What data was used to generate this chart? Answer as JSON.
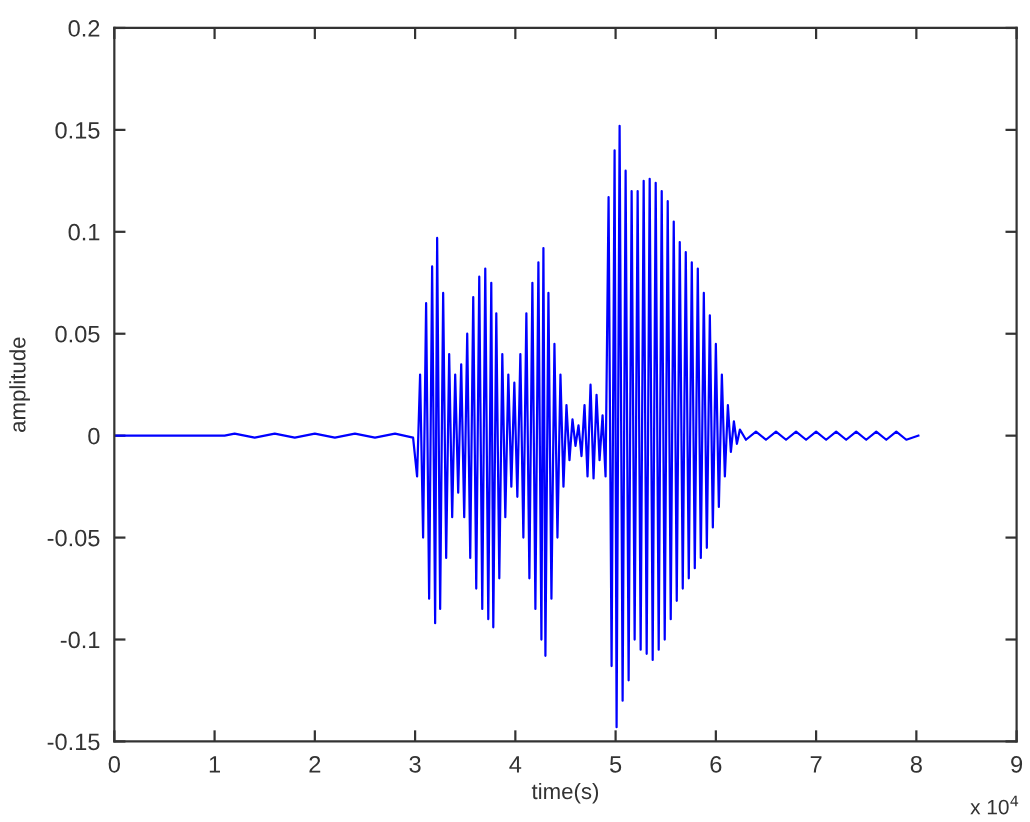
{
  "chart_data": {
    "type": "line",
    "xlabel": "time(s)",
    "ylabel": "amplitude",
    "color": "#0000ff",
    "marker": "none",
    "line_style": "solid",
    "grid": false,
    "annotations": [
      "x 10$^{4}$"
    ],
    "xlim": [
      0,
      9
    ],
    "xticks": [
      0,
      1,
      2,
      3,
      4,
      5,
      6,
      7,
      8,
      9
    ],
    "ylim": [
      -0.15,
      0.2
    ],
    "yticks": [
      -0.15,
      -0.1,
      -0.05,
      0,
      0.05,
      0.1,
      0.15,
      0.2
    ],
    "x": [
      0,
      1.1,
      1.2,
      1.4,
      1.6,
      1.8,
      2.0,
      2.2,
      2.4,
      2.6,
      2.8,
      2.98,
      3.02,
      3.05,
      3.08,
      3.11,
      3.14,
      3.17,
      3.2,
      3.22,
      3.25,
      3.28,
      3.31,
      3.34,
      3.37,
      3.4,
      3.43,
      3.46,
      3.49,
      3.52,
      3.55,
      3.58,
      3.61,
      3.64,
      3.67,
      3.7,
      3.73,
      3.76,
      3.78,
      3.81,
      3.84,
      3.87,
      3.9,
      3.93,
      3.96,
      3.99,
      4.02,
      4.05,
      4.08,
      4.11,
      4.14,
      4.17,
      4.2,
      4.23,
      4.26,
      4.28,
      4.3,
      4.33,
      4.36,
      4.39,
      4.42,
      4.45,
      4.48,
      4.51,
      4.54,
      4.57,
      4.6,
      4.63,
      4.66,
      4.69,
      4.72,
      4.75,
      4.78,
      4.81,
      4.84,
      4.87,
      4.9,
      4.93,
      4.96,
      4.99,
      5.01,
      5.04,
      5.07,
      5.1,
      5.13,
      5.16,
      5.19,
      5.22,
      5.25,
      5.28,
      5.31,
      5.34,
      5.37,
      5.4,
      5.43,
      5.46,
      5.49,
      5.52,
      5.55,
      5.58,
      5.61,
      5.64,
      5.67,
      5.7,
      5.73,
      5.76,
      5.79,
      5.82,
      5.85,
      5.88,
      5.91,
      5.94,
      5.97,
      6.0,
      6.03,
      6.06,
      6.09,
      6.12,
      6.15,
      6.18,
      6.21,
      6.24,
      6.3,
      6.4,
      6.5,
      6.6,
      6.7,
      6.8,
      6.9,
      7.0,
      7.1,
      7.2,
      7.3,
      7.4,
      7.5,
      7.6,
      7.7,
      7.8,
      7.9,
      8.02
    ],
    "values": [
      0,
      0,
      0.001,
      -0.001,
      0.001,
      -0.001,
      0.001,
      -0.001,
      0.001,
      -0.001,
      0.001,
      -0.001,
      -0.02,
      0.03,
      -0.05,
      0.065,
      -0.08,
      0.083,
      -0.092,
      0.097,
      -0.085,
      0.07,
      -0.06,
      0.04,
      -0.04,
      0.03,
      -0.028,
      0.035,
      -0.04,
      0.05,
      -0.06,
      0.068,
      -0.075,
      0.078,
      -0.085,
      0.082,
      -0.09,
      0.075,
      -0.094,
      0.06,
      -0.07,
      0.04,
      -0.04,
      0.03,
      -0.025,
      0.026,
      -0.03,
      0.04,
      -0.05,
      0.06,
      -0.07,
      0.075,
      -0.085,
      0.085,
      -0.1,
      0.092,
      -0.108,
      0.07,
      -0.08,
      0.045,
      -0.05,
      0.03,
      -0.025,
      0.015,
      -0.012,
      0.008,
      -0.005,
      0.005,
      -0.01,
      0.015,
      -0.02,
      0.025,
      -0.021,
      0.02,
      -0.012,
      0.01,
      -0.02,
      0.117,
      -0.113,
      0.14,
      -0.143,
      0.152,
      -0.13,
      0.13,
      -0.12,
      0.12,
      -0.1,
      0.12,
      -0.105,
      0.125,
      -0.107,
      0.126,
      -0.11,
      0.124,
      -0.105,
      0.12,
      -0.1,
      0.115,
      -0.09,
      0.105,
      -0.081,
      0.095,
      -0.075,
      0.09,
      -0.07,
      0.085,
      -0.065,
      0.082,
      -0.06,
      0.07,
      -0.055,
      0.059,
      -0.045,
      0.045,
      -0.035,
      0.03,
      -0.02,
      0.015,
      -0.008,
      0.007,
      -0.004,
      0.003,
      -0.002,
      0.002,
      -0.002,
      0.002,
      -0.002,
      0.002,
      -0.002,
      0.002,
      -0.002,
      0.002,
      -0.002,
      0.002,
      -0.002,
      0.002,
      -0.002,
      0.002,
      -0.002,
      0
    ]
  }
}
